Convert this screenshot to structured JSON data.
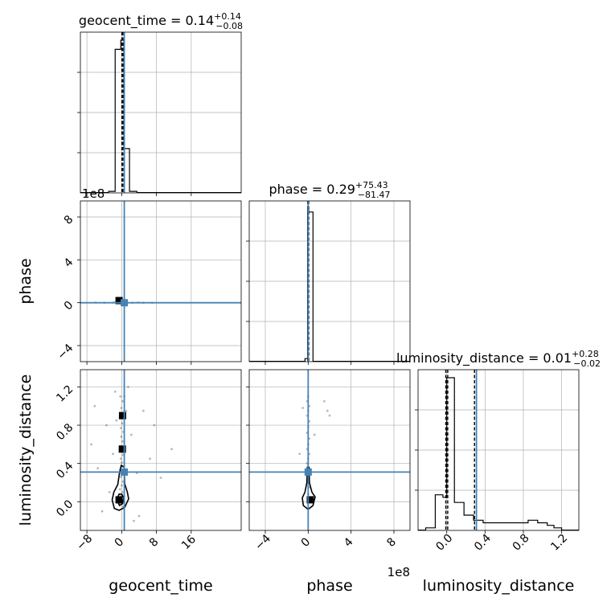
{
  "chart_data": {
    "type": "corner",
    "truth_color": "#4682b4",
    "parameters": [
      {
        "name": "geocent_time",
        "axis_label": "geocent_time",
        "title": {
          "main": "geocent_time = 0.14",
          "sup": "+0.14",
          "sub": "−0.08"
        },
        "range": [
          -9.5,
          27.5
        ],
        "ticks": [
          -8,
          0,
          8,
          16
        ],
        "tick_labels": [
          "−8",
          "0",
          "8",
          "16"
        ],
        "offset_label": "",
        "truth": 0.6,
        "quantiles": [
          0.06,
          0.14,
          0.28
        ],
        "hist": {
          "edges": [
            -3.0,
            -1.5,
            -0.2,
            0.5,
            1.8,
            3.5
          ],
          "density": [
            0.01,
            0.94,
            1.0,
            0.29,
            0.01
          ]
        }
      },
      {
        "name": "phase",
        "axis_label": "phase",
        "title": {
          "main": "phase = 0.29",
          "sup": "+75.43",
          "sub": "−81.47"
        },
        "range": [
          -5.5,
          9.5
        ],
        "ticks": [
          -4,
          0,
          4,
          8
        ],
        "tick_labels": [
          "−4",
          "0",
          "4",
          "8"
        ],
        "offset_label": "1e8",
        "truth": 0.0,
        "quantiles": [
          -0.05,
          0.0,
          0.05
        ],
        "hist": {
          "edges": [
            -0.3,
            -0.05,
            0.05,
            0.45
          ],
          "density": [
            0.02,
            1.0,
            0.98
          ]
        }
      },
      {
        "name": "luminosity_distance",
        "axis_label": "luminosity_distance",
        "title": {
          "main": "luminosity_distance = 0.01",
          "sup": "+0.28",
          "sub": "−0.02"
        },
        "range": [
          -0.3,
          1.38
        ],
        "ticks": [
          0.0,
          0.4,
          0.8,
          1.2
        ],
        "tick_labels": [
          "0.0",
          "0.4",
          "0.8",
          "1.2"
        ],
        "offset_label": "",
        "truth": 0.31,
        "quantiles": [
          -0.01,
          0.01,
          0.29
        ],
        "hist": {
          "edges": [
            -0.22,
            -0.12,
            -0.04,
            0.0,
            0.08,
            0.18,
            0.28,
            0.38,
            0.5,
            0.6,
            0.7,
            0.78,
            0.85,
            0.95,
            1.05,
            1.12,
            1.2
          ],
          "density": [
            0.01,
            0.14,
            0.13,
            0.6,
            0.11,
            0.06,
            0.04,
            0.03,
            0.03,
            0.03,
            0.03,
            0.03,
            0.04,
            0.03,
            0.02,
            0.01
          ]
        }
      }
    ],
    "scatter_panels": [
      {
        "x_param": 0,
        "y_param": 1,
        "density_points": [
          [
            -0.6,
            0.05
          ],
          [
            -0.3,
            0.02
          ],
          [
            0.1,
            -0.02
          ],
          [
            -1.0,
            0.0
          ],
          [
            0.4,
            0.03
          ],
          [
            -0.1,
            -0.04
          ],
          [
            0.2,
            0.0
          ],
          [
            -2.0,
            0.01
          ],
          [
            2.5,
            -0.01
          ],
          [
            -4.0,
            0.0
          ],
          [
            5.0,
            0.0
          ],
          [
            -6.0,
            0.02
          ],
          [
            7.0,
            -0.01
          ],
          [
            3.8,
            0.02
          ],
          [
            -1.5,
            0.04
          ],
          [
            0.7,
            0.05
          ],
          [
            -0.8,
            -0.03
          ]
        ],
        "dense_cores": [
          [
            -0.6,
            0.2
          ]
        ],
        "contours": []
      },
      {
        "x_param": 0,
        "y_param": 2,
        "density_points": [
          [
            -0.3,
            1.1
          ],
          [
            0.2,
            1.05
          ],
          [
            -0.1,
            0.98
          ],
          [
            0.3,
            0.92
          ],
          [
            -0.4,
            0.88
          ],
          [
            0.1,
            0.82
          ],
          [
            -0.2,
            0.77
          ],
          [
            0.4,
            0.73
          ],
          [
            -0.1,
            0.68
          ],
          [
            0.2,
            0.63
          ],
          [
            -0.3,
            0.58
          ],
          [
            0.1,
            0.53
          ],
          [
            0.3,
            0.49
          ],
          [
            -0.2,
            0.45
          ],
          [
            0.0,
            0.41
          ],
          [
            0.2,
            0.37
          ],
          [
            -0.3,
            0.34
          ],
          [
            0.1,
            0.29
          ],
          [
            -0.2,
            0.26
          ],
          [
            0.3,
            0.21
          ],
          [
            0.0,
            0.17
          ],
          [
            -0.4,
            0.13
          ],
          [
            0.2,
            0.1
          ],
          [
            -0.1,
            0.06
          ],
          [
            0.1,
            0.02
          ],
          [
            -0.5,
            -0.02
          ],
          [
            0.3,
            -0.05
          ],
          [
            -2.0,
            0.5
          ],
          [
            -3.5,
            0.8
          ],
          [
            -5.5,
            0.35
          ],
          [
            -7.0,
            0.6
          ],
          [
            2.2,
            0.7
          ],
          [
            3.5,
            0.3
          ],
          [
            5.0,
            0.95
          ],
          [
            6.5,
            0.45
          ],
          [
            9.0,
            0.25
          ],
          [
            11.5,
            0.55
          ],
          [
            -1.5,
            1.15
          ],
          [
            1.5,
            1.2
          ],
          [
            -4.5,
            -0.1
          ],
          [
            4.0,
            -0.15
          ],
          [
            -2.8,
            0.1
          ],
          [
            7.5,
            0.8
          ],
          [
            -6.2,
            1.0
          ],
          [
            2.8,
            -0.2
          ],
          [
            -1.2,
            0.85
          ],
          [
            1.0,
            0.95
          ],
          [
            0.6,
            1.1
          ]
        ],
        "dense_cores": [
          [
            0.2,
            0.9
          ],
          [
            0.15,
            0.55
          ],
          [
            -0.6,
            0.02
          ]
        ],
        "contours": [
          [
            [
              -2.2,
              0.02
            ],
            [
              -1.7,
              -0.07
            ],
            [
              -0.6,
              -0.09
            ],
            [
              0.7,
              -0.06
            ],
            [
              1.6,
              0.03
            ],
            [
              1.3,
              0.1
            ],
            [
              0.7,
              0.19
            ],
            [
              0.6,
              0.36
            ],
            [
              -0.1,
              0.38
            ],
            [
              -0.5,
              0.3
            ],
            [
              -0.9,
              0.18
            ],
            [
              -1.8,
              0.1
            ],
            [
              -2.2,
              0.02
            ]
          ],
          [
            [
              -1.1,
              0.02
            ],
            [
              -0.5,
              -0.04
            ],
            [
              0.2,
              -0.02
            ],
            [
              0.5,
              0.04
            ],
            [
              0.0,
              0.08
            ],
            [
              -0.6,
              0.08
            ],
            [
              -1.1,
              0.02
            ]
          ]
        ]
      },
      {
        "x_param": 1,
        "y_param": 2,
        "density_points": [
          [
            0.0,
            1.1
          ],
          [
            -0.1,
            1.05
          ],
          [
            0.1,
            1.0
          ],
          [
            0.0,
            0.95
          ],
          [
            -0.1,
            0.9
          ],
          [
            0.1,
            0.84
          ],
          [
            0.0,
            0.78
          ],
          [
            -0.1,
            0.72
          ],
          [
            0.1,
            0.66
          ],
          [
            0.0,
            0.6
          ],
          [
            -0.1,
            0.55
          ],
          [
            0.1,
            0.5
          ],
          [
            0.0,
            0.45
          ],
          [
            -0.1,
            0.4
          ],
          [
            0.1,
            0.35
          ],
          [
            0.0,
            0.28
          ],
          [
            -0.1,
            0.22
          ],
          [
            0.1,
            0.15
          ],
          [
            0.0,
            0.08
          ],
          [
            1.8,
            0.95
          ],
          [
            2.0,
            0.9
          ],
          [
            1.5,
            1.05
          ],
          [
            -0.5,
            0.98
          ],
          [
            0.6,
            0.7
          ],
          [
            -0.8,
            0.5
          ]
        ],
        "dense_cores": [
          [
            0.2,
            0.02
          ]
        ],
        "contours": [
          [
            [
              -0.55,
              0.04
            ],
            [
              -0.45,
              -0.04
            ],
            [
              0.0,
              -0.08
            ],
            [
              0.45,
              -0.04
            ],
            [
              0.65,
              0.05
            ],
            [
              0.35,
              0.1
            ],
            [
              0.12,
              0.2
            ],
            [
              0.08,
              0.36
            ],
            [
              -0.08,
              0.36
            ],
            [
              -0.12,
              0.2
            ],
            [
              -0.3,
              0.1
            ],
            [
              -0.55,
              0.04
            ]
          ]
        ]
      }
    ],
    "grid": true
  }
}
